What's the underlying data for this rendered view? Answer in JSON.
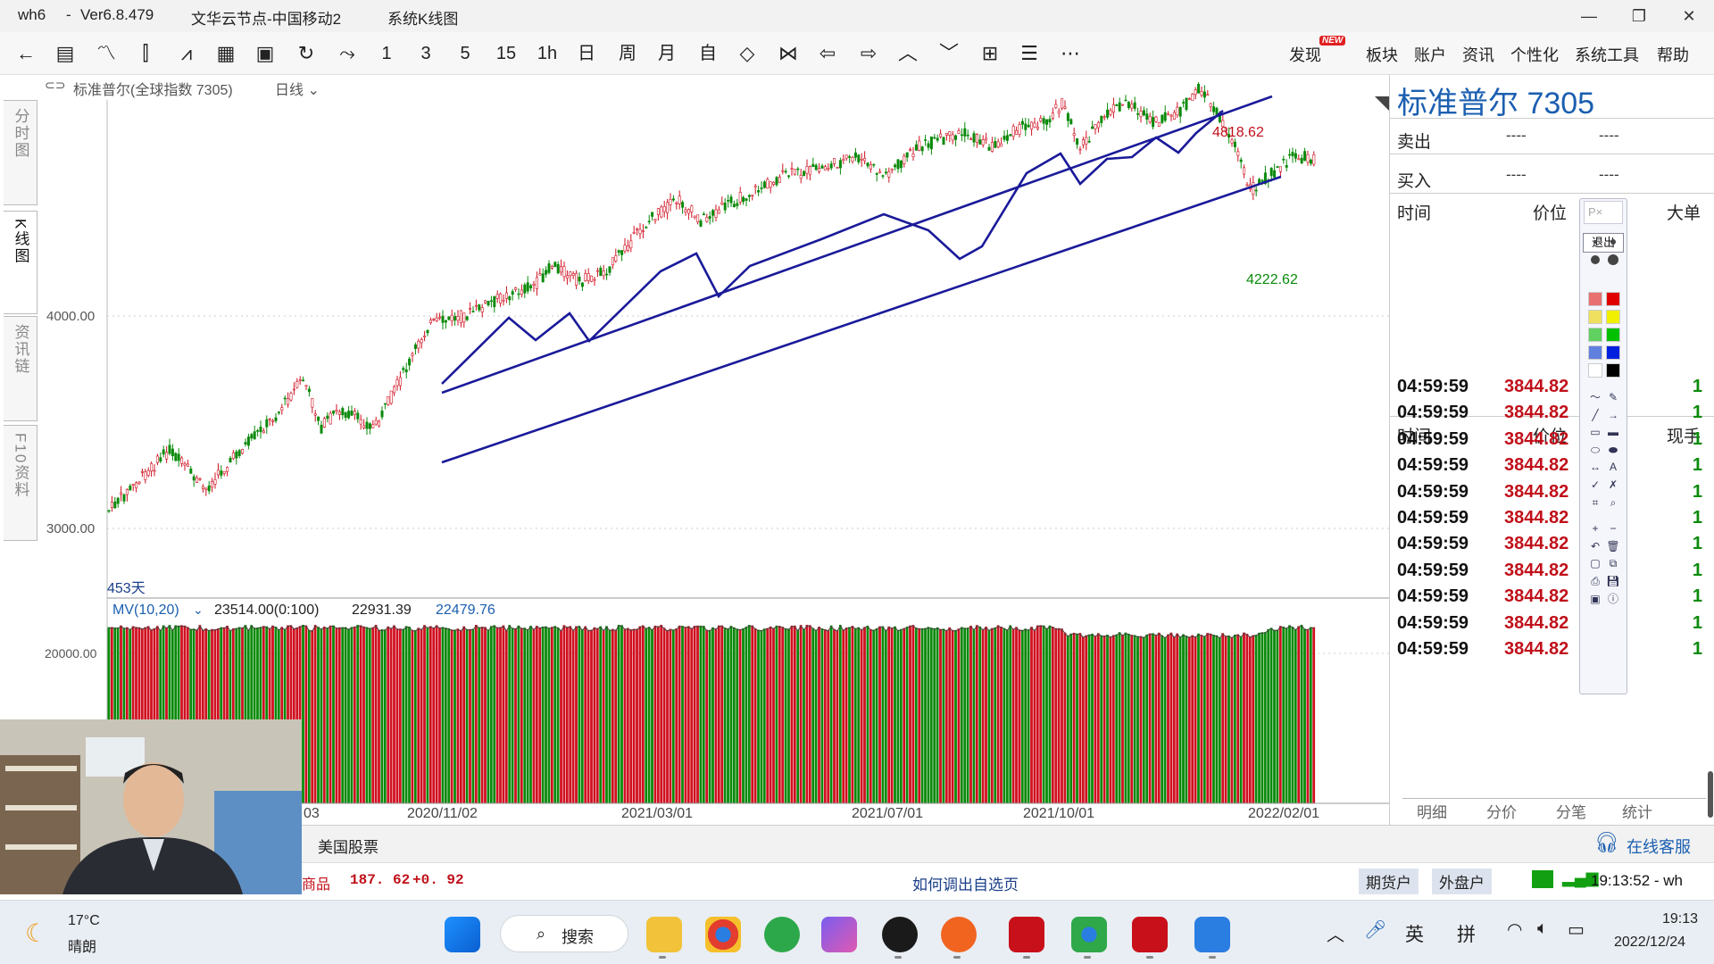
{
  "window": {
    "app": "wh6",
    "version": "Ver6.8.479",
    "server": "文华云节点-中国移动2",
    "view": "系统K线图"
  },
  "toolbar": {
    "period_buttons": [
      "1",
      "3",
      "5",
      "15",
      "1h",
      "日",
      "周",
      "月",
      "自"
    ],
    "menus": [
      "发现",
      "板块",
      "账户",
      "资讯",
      "个性化",
      "系统工具",
      "帮助"
    ],
    "new_badge": "NEW"
  },
  "chart_header": {
    "instrument": "标准普尔(全球指数 7305)",
    "period": "日线"
  },
  "side_tabs": [
    "分时图",
    "K线图",
    "资讯链",
    "F10资料"
  ],
  "price_axis": {
    "labels": [
      "4000.00",
      "3000.00"
    ]
  },
  "annotations": {
    "high": "4818.62",
    "low": "4222.62",
    "days": "453天"
  },
  "volume_header": {
    "indicator": "MV(10,20)",
    "v1": "23514.00(0:100)",
    "v2": "22931.39",
    "v3": "22479.76",
    "axis_label": "20000.00"
  },
  "date_axis": [
    "03",
    "2020/11/02",
    "2021/03/01",
    "2021/07/01",
    "2021/10/01",
    "2022/02/01"
  ],
  "quote_panel": {
    "title": "标准普尔  7305",
    "sell_label": "卖出",
    "buy_label": "买入",
    "dash": "----",
    "col_time": "时间",
    "col_price": "价位",
    "col_big": "大单",
    "col_now": "现手",
    "ticks": [
      {
        "time": "04:59:59",
        "price": "3844.82",
        "vol": "1"
      },
      {
        "time": "04:59:59",
        "price": "3844.82",
        "vol": "1"
      },
      {
        "time": "04:59:59",
        "price": "3844.82",
        "vol": "1"
      },
      {
        "time": "04:59:59",
        "price": "3844.82",
        "vol": "1"
      },
      {
        "time": "04:59:59",
        "price": "3844.82",
        "vol": "1"
      },
      {
        "time": "04:59:59",
        "price": "3844.82",
        "vol": "1"
      },
      {
        "time": "04:59:59",
        "price": "3844.82",
        "vol": "1"
      },
      {
        "time": "04:59:59",
        "price": "3844.82",
        "vol": "1"
      },
      {
        "time": "04:59:59",
        "price": "3844.82",
        "vol": "1"
      },
      {
        "time": "04:59:59",
        "price": "3844.82",
        "vol": "1"
      },
      {
        "time": "04:59:59",
        "price": "3844.82",
        "vol": "1"
      }
    ],
    "tabs": [
      "明细",
      "分价",
      "分笔",
      "统计"
    ]
  },
  "palette": {
    "exit_label": "退出",
    "top_label": "P"
  },
  "status_bar": {
    "market": "美国股票",
    "online_service": "在线客服",
    "ticker_name": "商品",
    "ticker_price": "187. 62",
    "ticker_change": "+0. 92",
    "hint": "如何调出自选页",
    "futures_account": "期货户",
    "external_account": "外盘户",
    "clock": "19:13:52 - wh"
  },
  "taskbar": {
    "weather_temp": "17°C",
    "weather_desc": "晴朗",
    "search": "搜索",
    "ime1": "英",
    "ime2": "拼",
    "time": "19:13",
    "date": "2022/12/24"
  },
  "colors": {
    "up": "#d01020",
    "down": "#0a8a0a",
    "channel": "#1a1a9a",
    "title_blue": "#1b5fb0"
  }
}
